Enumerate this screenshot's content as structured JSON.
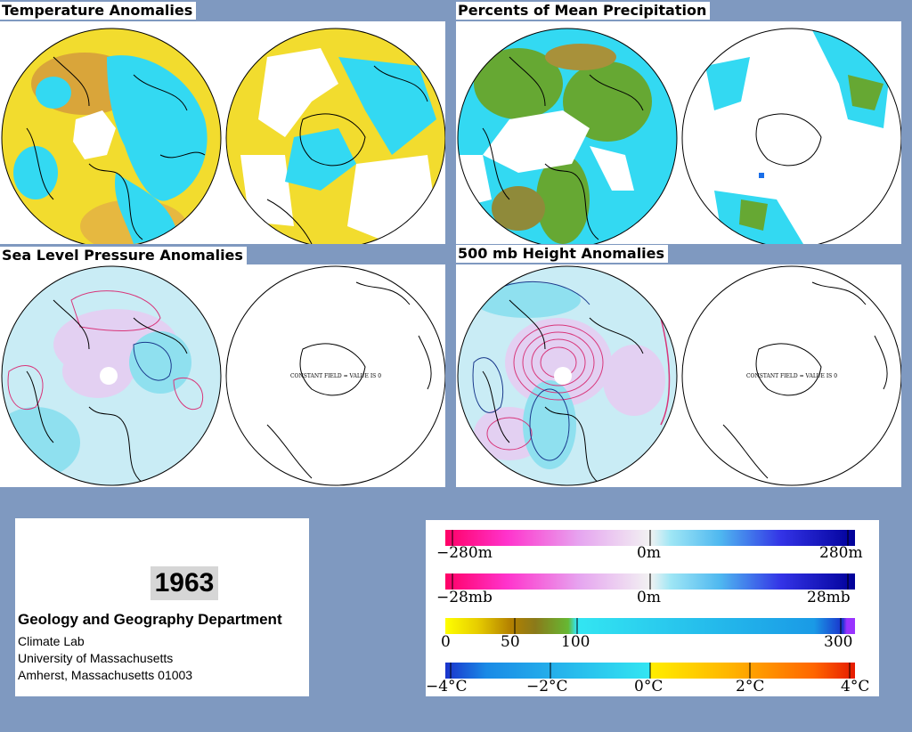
{
  "panels": {
    "temperature": {
      "title": "Temperature Anomalies"
    },
    "precipitation": {
      "title": "Percents of Mean Precipitation"
    },
    "sea_level_pressure": {
      "title": "Sea Level Pressure Anomalies",
      "constant_field_label": "CONSTANT FIELD = VALUE IS 0"
    },
    "height_500mb": {
      "title": "500 mb Height Anomalies",
      "constant_field_label": "CONSTANT FIELD = VALUE IS 0"
    }
  },
  "info": {
    "year": "1963",
    "department": "Geology and Geography Department",
    "lines": [
      "Climate Lab",
      "University of Massachusetts",
      "Amherst, Massachusetts 01003"
    ]
  },
  "legend": {
    "height_scale": {
      "labels": [
        "−280m",
        "0m",
        "280m"
      ]
    },
    "pressure_scale": {
      "labels": [
        "−28mb",
        "0m",
        "28mb"
      ]
    },
    "precip_scale": {
      "labels": [
        "0",
        "50",
        "100",
        "300"
      ]
    },
    "temp_scale": {
      "labels": [
        "−4°C",
        "−2°C",
        "0°C",
        "2°C",
        "4°C"
      ]
    }
  },
  "colors": {
    "background": "#7f99c0",
    "warm_anomaly": "#f2dc2e",
    "cold_anomaly": "#33d9f2",
    "positive_contour": "#d8357a",
    "negative_contour": "#1a3a8c",
    "precip_green": "#66a833"
  }
}
